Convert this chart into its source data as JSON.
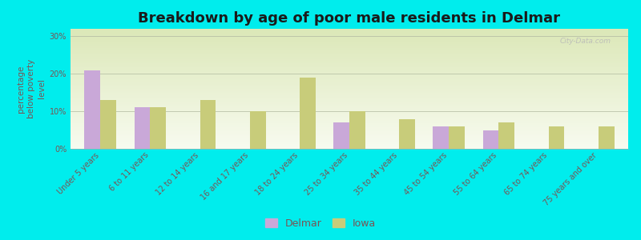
{
  "title": "Breakdown by age of poor male residents in Delmar",
  "ylabel": "percentage\nbelow poverty\nlevel",
  "categories": [
    "Under 5 years",
    "6 to 11 years",
    "12 to 14 years",
    "16 and 17 years",
    "18 to 24 years",
    "25 to 34 years",
    "35 to 44 years",
    "45 to 54 years",
    "55 to 64 years",
    "65 to 74 years",
    "75 years and over"
  ],
  "delmar_values": [
    21,
    11,
    0,
    0,
    0,
    7,
    0,
    6,
    5,
    0,
    0
  ],
  "iowa_values": [
    13,
    11,
    13,
    10,
    19,
    10,
    8,
    6,
    7,
    6,
    6
  ],
  "delmar_color": "#c9a8d8",
  "iowa_color": "#c8cc7a",
  "background_color": "#00eded",
  "grad_top": "#dce8b8",
  "grad_bottom": "#f8fbf0",
  "title_color": "#1a1a1a",
  "tick_label_color": "#7a5555",
  "ylim": [
    0,
    32
  ],
  "yticks": [
    0,
    10,
    20,
    30
  ],
  "ytick_labels": [
    "0%",
    "10%",
    "20%",
    "30%"
  ],
  "bar_width": 0.32,
  "legend_labels": [
    "Delmar",
    "Iowa"
  ],
  "watermark": "City-Data.com",
  "title_fontsize": 13,
  "axis_fontsize": 7.5,
  "tick_fontsize": 7
}
